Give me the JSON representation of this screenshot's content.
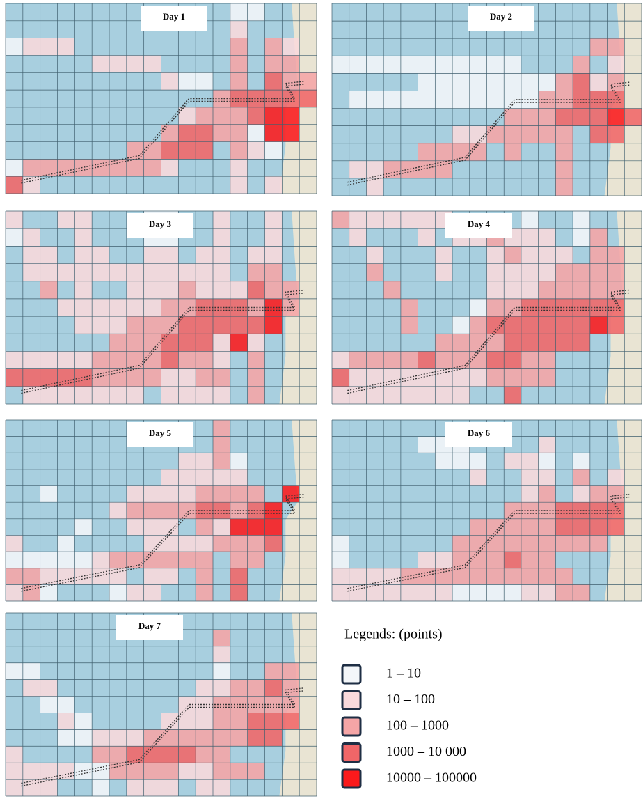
{
  "panels": [
    {
      "title": "Day 1",
      "grid": [
        "000000000000011000",
        "000000000000020000",
        "122200000000030320",
        "000002222000030330",
        "000000000211030433",
        "000000000000344444",
        "000000000023334550",
        "000000000344331550",
        "000000033444032100",
        "133333333200020000",
        "420000000000020200"
      ]
    },
    {
      "title": "Day 2",
      "grid": [
        "000000000000000000",
        "000000000000000000",
        "000000000000000330",
        "111111111110003020",
        "000001111111134230",
        "011111111111334440",
        "000000000033344454",
        "000000022333330440",
        "000003333030030000",
        "022333300000030000",
        "002000000000030000"
      ]
    },
    {
      "title": "Day 3",
      "grid": [
        "200220001100200200",
        "120020001100200200",
        "022022002202202200",
        "022222222222203300",
        "003020022232224330",
        "000222222334443530",
        "000022233344444500",
        "000000333444252000",
        "222223333433203000",
        "444443333223303000",
        "022222220222203000"
      ]
    },
    {
      "title": "Day 4",
      "grid": [
        "322222200001001000",
        "020002022322201300",
        "002000200232220330",
        "003000200222233330",
        "000300000222333330",
        "000030001334444440",
        "000030013444444540",
        "000000333344444000",
        "233334333443300000",
        "422222222333300000",
        "222222220040000000"
      ]
    },
    {
      "title": "Day 5",
      "grid": [
        "000000000000300000",
        "000000000000300000",
        "000000000022310000",
        "000000000222220000",
        "001000022223333050",
        "000000233334434500",
        "000010022203255500",
        "200100002222333400",
        "111112333333033000",
        "332222202203040000",
        "231000122003040000"
      ]
    },
    {
      "title": "Day 6",
      "grid": [
        "000000000000000000",
        "000001110000200000",
        "000000111022101000",
        "000000002002203020",
        "000000000002302330",
        "000000000033344440",
        "000000003333344440",
        "100000033333333300",
        "100002233343300000",
        "222233333333330000",
        "222222211112233000"
      ]
    },
    {
      "title": "Day 7",
      "grid": [
        "000000000000000000",
        "000000000000300000",
        "000000000000200000",
        "110000000000100330",
        "022000000002233430",
        "001100000022333330",
        "000210000222334440",
        "000112223333334400",
        "200003344443300000",
        "222211333322333000",
        "222001022202200000"
      ]
    }
  ],
  "legend": {
    "title": "Legends: (points)",
    "items": [
      {
        "label": "1 – 10",
        "color": "#f3f6f9"
      },
      {
        "label": "10 – 100",
        "color": "#f8d9dc"
      },
      {
        "label": "100 – 1000",
        "color": "#f5a5a6"
      },
      {
        "label": "1000 – 10 000",
        "color": "#f06668"
      },
      {
        "label": "10000 – 100000",
        "color": "#fb1a1c"
      }
    ]
  }
}
